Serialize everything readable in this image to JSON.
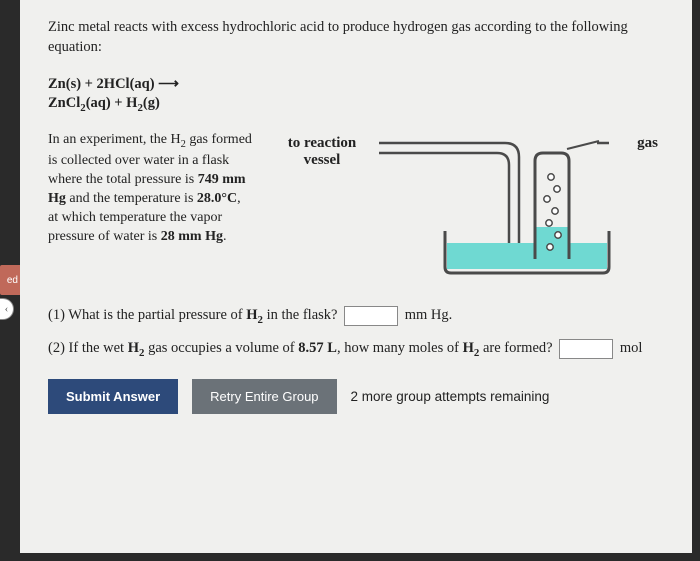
{
  "sliver": {
    "tab": "ed",
    "icon": "‹"
  },
  "intro": "Zinc metal reacts with excess hydrochloric acid to produce hydrogen gas according to the following equation:",
  "equation": {
    "line1_html": "Zn(s) + 2HCl(aq) ⟶",
    "line2_html": "ZnCl<sub>2</sub>(aq) + H<sub>2</sub>(g)"
  },
  "description_html": "In an experiment, the H<sub>2</sub> gas formed is collected over water in a flask where the total pressure is <span class='b'>749 mm Hg</span> and the temperature is <span class='b'>28.0°C</span>, at which temperature the vapor pressure of water is <span class='b'>28 mm Hg</span>.",
  "diagram": {
    "label_left_html": "to reaction<br>vessel",
    "label_right": "gas",
    "water_color": "#6fd9d2",
    "vessel_stroke": "#4a4a4a",
    "bubble_fill": "#ffffff"
  },
  "q1_html": "(1) What is the partial pressure of <b>H<sub>2</sub></b> in the flask?",
  "q1_unit": "mm Hg.",
  "q2_html": "(2) If the wet <b>H<sub>2</sub></b> gas occupies a volume of <b>8.57 L</b>, how many moles of <b>H<sub>2</sub></b> are formed?",
  "q2_unit": "mol",
  "buttons": {
    "submit": "Submit Answer",
    "retry": "Retry Entire Group",
    "attempts": "2 more group attempts remaining"
  }
}
